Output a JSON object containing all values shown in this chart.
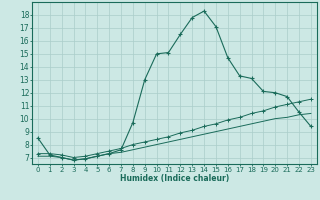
{
  "xlabel": "Humidex (Indice chaleur)",
  "bg_color": "#cce8e4",
  "grid_color": "#aaceca",
  "line_color": "#1a6b5a",
  "xlim": [
    -0.5,
    23.5
  ],
  "ylim": [
    6.5,
    19.0
  ],
  "yticks": [
    7,
    8,
    9,
    10,
    11,
    12,
    13,
    14,
    15,
    16,
    17,
    18
  ],
  "xticks": [
    0,
    1,
    2,
    3,
    4,
    5,
    6,
    7,
    8,
    9,
    10,
    11,
    12,
    13,
    14,
    15,
    16,
    17,
    18,
    19,
    20,
    21,
    22,
    23
  ],
  "curve1_x": [
    0,
    1,
    2,
    3,
    4,
    5,
    6,
    7,
    8,
    9,
    10,
    11,
    12,
    13,
    14,
    15,
    16,
    17,
    18,
    19,
    20,
    21,
    22,
    23
  ],
  "curve1_y": [
    8.5,
    7.2,
    7.0,
    6.8,
    6.9,
    7.1,
    7.3,
    7.6,
    9.7,
    13.0,
    15.0,
    15.1,
    16.5,
    17.8,
    18.3,
    17.1,
    14.7,
    13.3,
    13.1,
    12.1,
    12.0,
    11.7,
    10.5,
    9.4
  ],
  "curve2_x": [
    0,
    1,
    2,
    3,
    4,
    5,
    6,
    7,
    8,
    9,
    10,
    11,
    12,
    13,
    14,
    15,
    16,
    17,
    18,
    19,
    20,
    21,
    22,
    23
  ],
  "curve2_y": [
    7.3,
    7.3,
    7.2,
    7.0,
    7.1,
    7.3,
    7.5,
    7.7,
    8.0,
    8.2,
    8.4,
    8.6,
    8.9,
    9.1,
    9.4,
    9.6,
    9.9,
    10.1,
    10.4,
    10.6,
    10.9,
    11.1,
    11.3,
    11.5
  ],
  "curve3_x": [
    0,
    1,
    2,
    3,
    4,
    5,
    6,
    7,
    8,
    9,
    10,
    11,
    12,
    13,
    14,
    15,
    16,
    17,
    18,
    19,
    20,
    21,
    22,
    23
  ],
  "curve3_y": [
    7.1,
    7.1,
    7.0,
    6.8,
    6.9,
    7.1,
    7.3,
    7.4,
    7.6,
    7.8,
    8.0,
    8.2,
    8.4,
    8.6,
    8.8,
    9.0,
    9.2,
    9.4,
    9.6,
    9.8,
    10.0,
    10.1,
    10.3,
    10.4
  ]
}
